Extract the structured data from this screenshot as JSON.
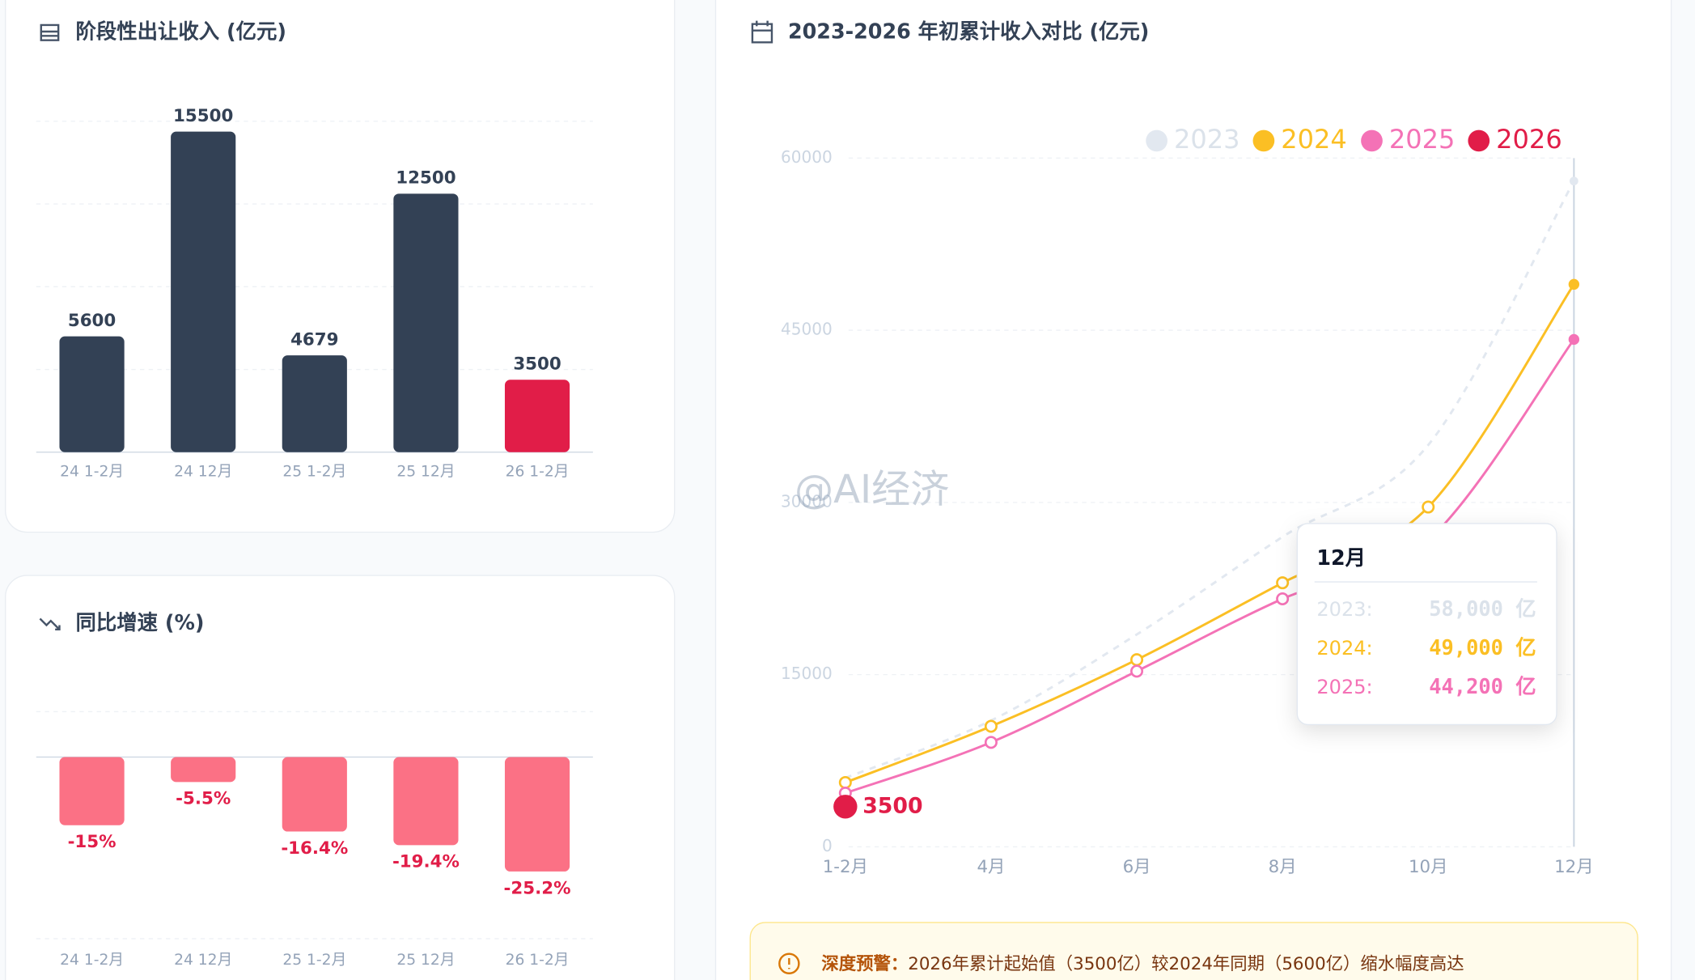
{
  "chart_data": [
    {
      "type": "bar",
      "title": "阶段性出让收入 (亿元)",
      "categories": [
        "24 1-2月",
        "24 12月",
        "25 1-2月",
        "25 12月",
        "26 1-2月"
      ],
      "values": [
        5600,
        15500,
        4679,
        12500,
        3500
      ],
      "colors": [
        "#334155",
        "#334155",
        "#334155",
        "#334155",
        "#e11d48"
      ],
      "ylim": [
        0,
        16000
      ],
      "yticks": [
        0,
        4000,
        8000,
        12000,
        16000
      ],
      "grid": true
    },
    {
      "type": "bar",
      "title": "同比增速 (%)",
      "categories": [
        "24 1-2月",
        "24 12月",
        "25 1-2月",
        "25 12月",
        "26 1-2月"
      ],
      "values": [
        -15,
        -5.5,
        -16.4,
        -19.4,
        -25.2
      ],
      "value_labels": [
        "-15%",
        "-5.5%",
        "-16.4%",
        "-19.4%",
        "-25.2%"
      ],
      "color": "#fb7185",
      "ylim": [
        -40,
        10
      ],
      "yticks": [
        -40,
        0,
        10
      ],
      "grid": true
    },
    {
      "type": "line",
      "title": "2023-2026 年初累计收入对比 (亿元)",
      "categories": [
        "1-2月",
        "4月",
        "6月",
        "8月",
        "10月",
        "12月"
      ],
      "series": [
        {
          "name": "2023",
          "color": "#e2e8f0",
          "dashed": true,
          "values": [
            6000,
            11000,
            18500,
            27000,
            35000,
            58000
          ]
        },
        {
          "name": "2024",
          "color": "#fbbf24",
          "values": [
            5600,
            10500,
            16300,
            23000,
            29600,
            49000
          ]
        },
        {
          "name": "2025",
          "color": "#f472b6",
          "values": [
            4679,
            9100,
            15300,
            21600,
            26700,
            44200
          ]
        },
        {
          "name": "2026",
          "color": "#e11d48",
          "values": [
            3500,
            null,
            null,
            null,
            null,
            null
          ]
        }
      ],
      "ylim": [
        0,
        60000
      ],
      "yticks": [
        0,
        15000,
        30000,
        45000,
        60000
      ],
      "grid": true,
      "legend": "top-right",
      "tooltip": {
        "title": "12月",
        "rows": [
          {
            "label": "2023:",
            "value": "58,000 亿"
          },
          {
            "label": "2024:",
            "value": "49,000 亿"
          },
          {
            "label": "2025:",
            "value": "44,200 亿"
          }
        ]
      }
    }
  ],
  "alert": {
    "label": "深度预警：",
    "text": "2026年累计起始值（3500亿）较2024年同期（5600亿）缩水幅度高达"
  },
  "watermark": "@AI经济"
}
